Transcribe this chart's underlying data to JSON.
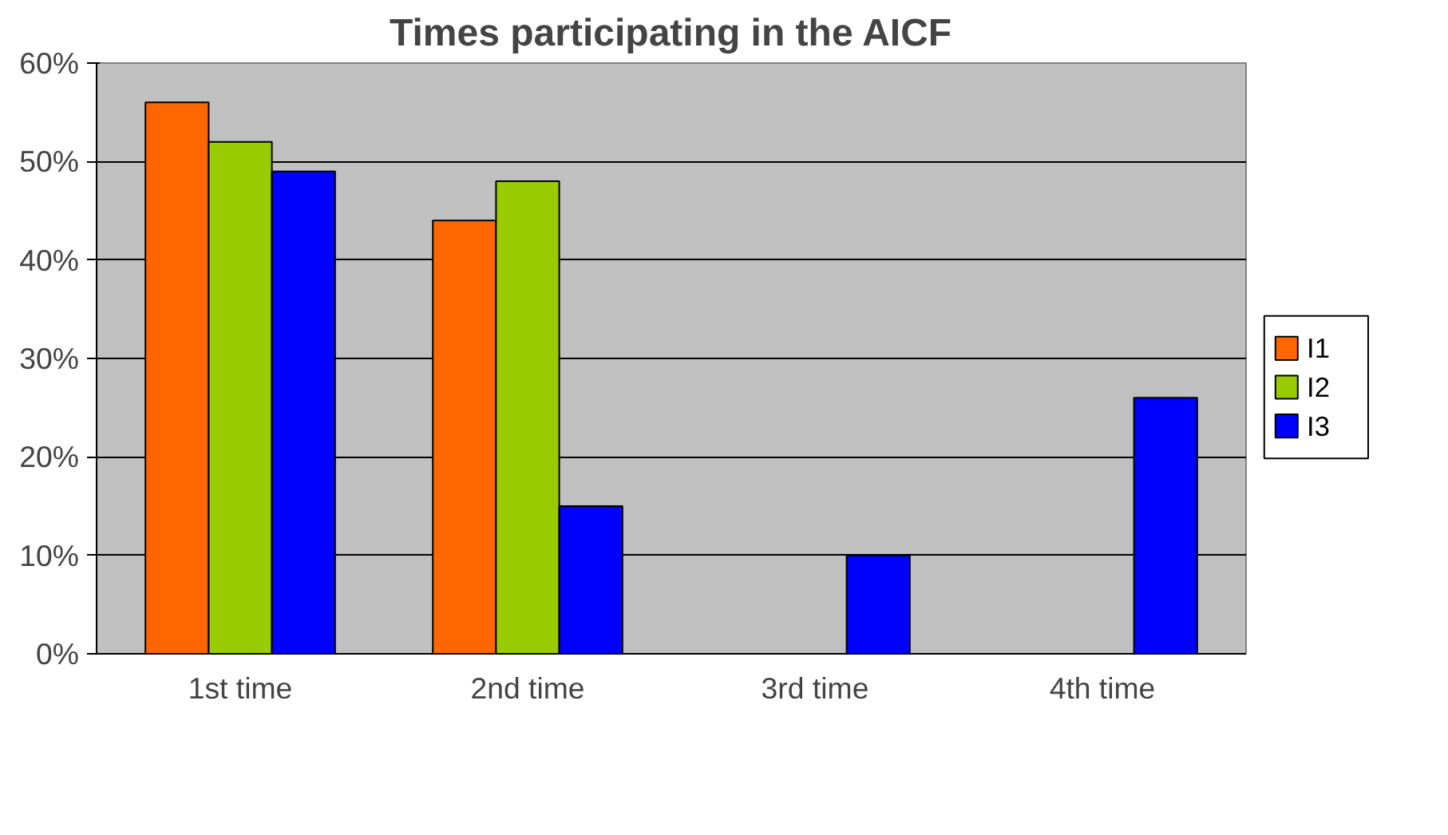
{
  "chart_data": {
    "type": "bar",
    "title": "Times participating in the AICF",
    "categories": [
      "1st time",
      "2nd time",
      "3rd time",
      "4th time"
    ],
    "series": [
      {
        "name": "I1",
        "color": "#ff6600",
        "values": [
          56,
          44,
          null,
          null
        ]
      },
      {
        "name": "I2",
        "color": "#99cc00",
        "values": [
          52,
          48,
          null,
          null
        ]
      },
      {
        "name": "I3",
        "color": "#0000ff",
        "values": [
          49,
          15,
          10,
          26
        ]
      }
    ],
    "ylim": [
      0,
      60
    ],
    "yticks": [
      {
        "value": 0,
        "label": "0%"
      },
      {
        "value": 10,
        "label": "10%"
      },
      {
        "value": 20,
        "label": "20%"
      },
      {
        "value": 30,
        "label": "30%"
      },
      {
        "value": 40,
        "label": "40%"
      },
      {
        "value": 50,
        "label": "50%"
      },
      {
        "value": 60,
        "label": "60%"
      }
    ],
    "grid": "y",
    "legend": "right"
  }
}
